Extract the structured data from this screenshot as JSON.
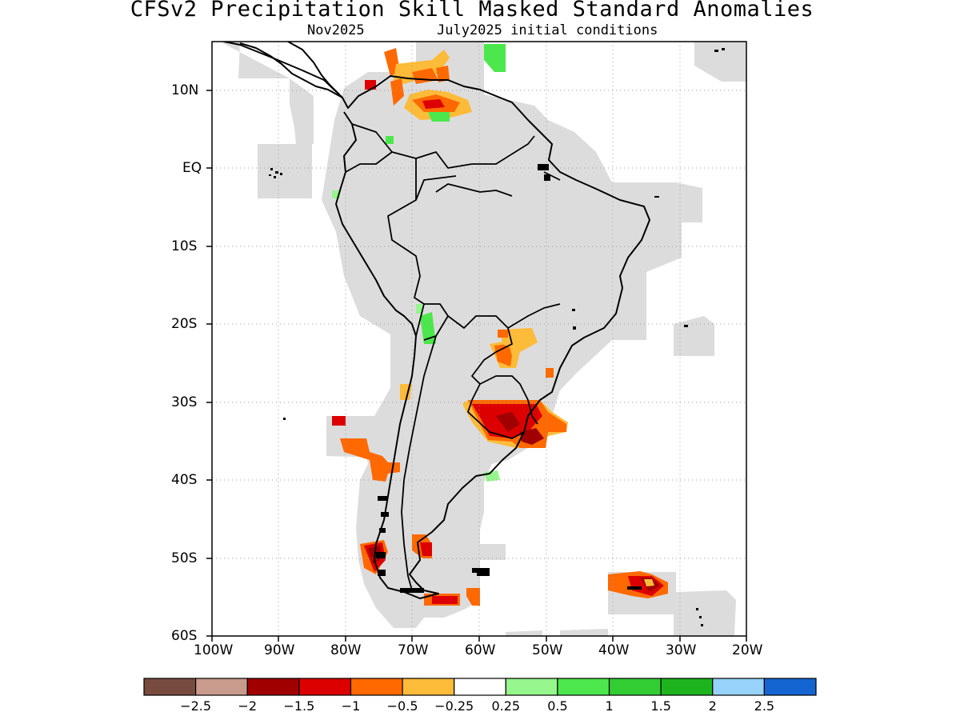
{
  "title": "CFSv2 Precipitation Skill Masked Standard Anomalies",
  "subtitle_left": "Nov2025",
  "subtitle_right": "July2025 initial conditions",
  "map": {
    "lon_range": [
      -100,
      -20
    ],
    "lat_range": [
      -60,
      16
    ],
    "lat_ticks": [
      "10N",
      "EQ",
      "10S",
      "20S",
      "30S",
      "40S",
      "50S",
      "60S"
    ],
    "lon_ticks": [
      "100W",
      "90W",
      "80W",
      "70W",
      "60W",
      "50W",
      "40W",
      "30W",
      "20W"
    ],
    "mask_color": "#dcdcdc",
    "anomaly_regions": [
      {
        "name": "caribbean-venezuela",
        "category": "-0.5",
        "color": "#fdbb3a"
      },
      {
        "name": "caribbean-core",
        "category": "-1",
        "color": "#ff6900"
      },
      {
        "name": "venezuela-core",
        "category": "-1.5",
        "color": "#dc0000"
      },
      {
        "name": "atacama",
        "category": "1",
        "color": "#4ce74c"
      },
      {
        "name": "paraguay",
        "category": "-1",
        "color": "#ff6900"
      },
      {
        "name": "uruguay-southern-brazil",
        "category": "-1.5",
        "color": "#dc0000"
      },
      {
        "name": "southern-chile-coast",
        "category": "-1",
        "color": "#ff6900"
      },
      {
        "name": "patagonia-west",
        "category": "-2",
        "color": "#a00000"
      },
      {
        "name": "south-georgia",
        "category": "-2",
        "color": "#a00000"
      }
    ]
  },
  "colorbar": {
    "colors": [
      "#774c3f",
      "#c99b8d",
      "#a00000",
      "#dc0000",
      "#ff6900",
      "#fdbb3a",
      "#ffffff",
      "#96f58c",
      "#4ce74c",
      "#32cd32",
      "#1eb41e",
      "#96d2fa",
      "#1464d2"
    ],
    "labels": [
      "−2.5",
      "−2",
      "−1.5",
      "−1",
      "−0.5",
      "−0.25",
      "0.25",
      "0.5",
      "1",
      "1.5",
      "2",
      "2.5"
    ]
  }
}
